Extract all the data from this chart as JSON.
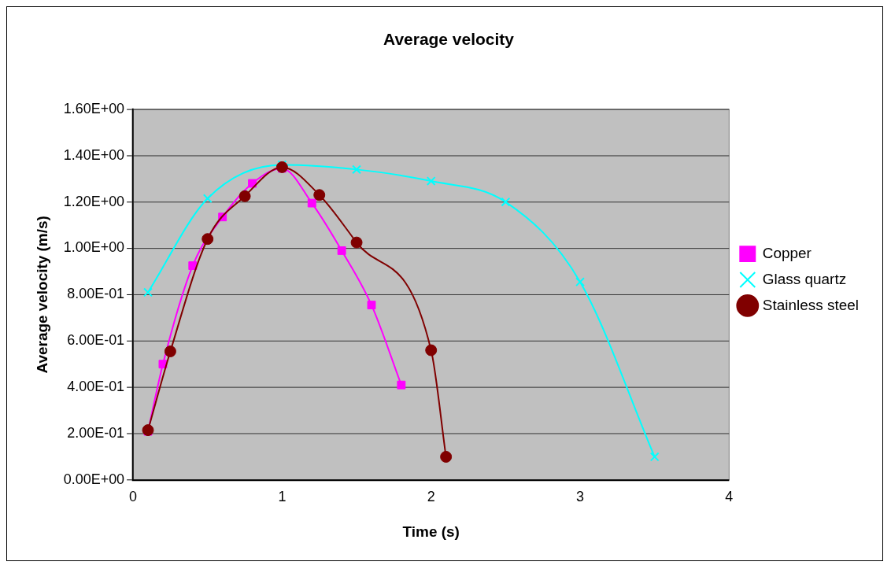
{
  "chart_data": {
    "type": "line",
    "title": "Average velocity",
    "xlabel": "Time (s)",
    "ylabel": "Average velocity (m/s)",
    "xlim": [
      0,
      4
    ],
    "xticks": [
      0,
      1,
      2,
      3,
      4
    ],
    "ylim": [
      0,
      1.6
    ],
    "yticks": [
      {
        "value": 0,
        "label": "0.00E+00"
      },
      {
        "value": 0.2,
        "label": "2.00E-01"
      },
      {
        "value": 0.4,
        "label": "4.00E-01"
      },
      {
        "value": 0.6,
        "label": "6.00E-01"
      },
      {
        "value": 0.8,
        "label": "8.00E-01"
      },
      {
        "value": 1.0,
        "label": "1.00E+00"
      },
      {
        "value": 1.2,
        "label": "1.20E+00"
      },
      {
        "value": 1.4,
        "label": "1.40E+00"
      },
      {
        "value": 1.6,
        "label": "1.60E+00"
      }
    ],
    "grid": "y",
    "legend": "right",
    "series": [
      {
        "name": "Copper",
        "color": "#ff00ff",
        "marker": "square",
        "x": [
          0.1,
          0.2,
          0.4,
          0.6,
          0.8,
          1.0,
          1.2,
          1.4,
          1.6,
          1.8
        ],
        "values": [
          0.21,
          0.5,
          0.925,
          1.135,
          1.28,
          1.345,
          1.195,
          0.99,
          0.755,
          0.41
        ]
      },
      {
        "name": "Glass quartz",
        "color": "#00ffff",
        "marker": "cross",
        "x": [
          0.1,
          0.5,
          1.0,
          1.5,
          2.0,
          2.5,
          3.0,
          3.5
        ],
        "values": [
          0.81,
          1.215,
          1.36,
          1.34,
          1.29,
          1.2,
          0.855,
          0.1
        ]
      },
      {
        "name": "Stainless steel",
        "color": "#800000",
        "marker": "circle",
        "x": [
          0.1,
          0.25,
          0.5,
          0.75,
          1.0,
          1.25,
          1.5,
          2.0,
          2.1
        ],
        "values": [
          0.215,
          0.555,
          1.04,
          1.225,
          1.35,
          1.23,
          1.025,
          0.56,
          0.1
        ]
      }
    ]
  }
}
